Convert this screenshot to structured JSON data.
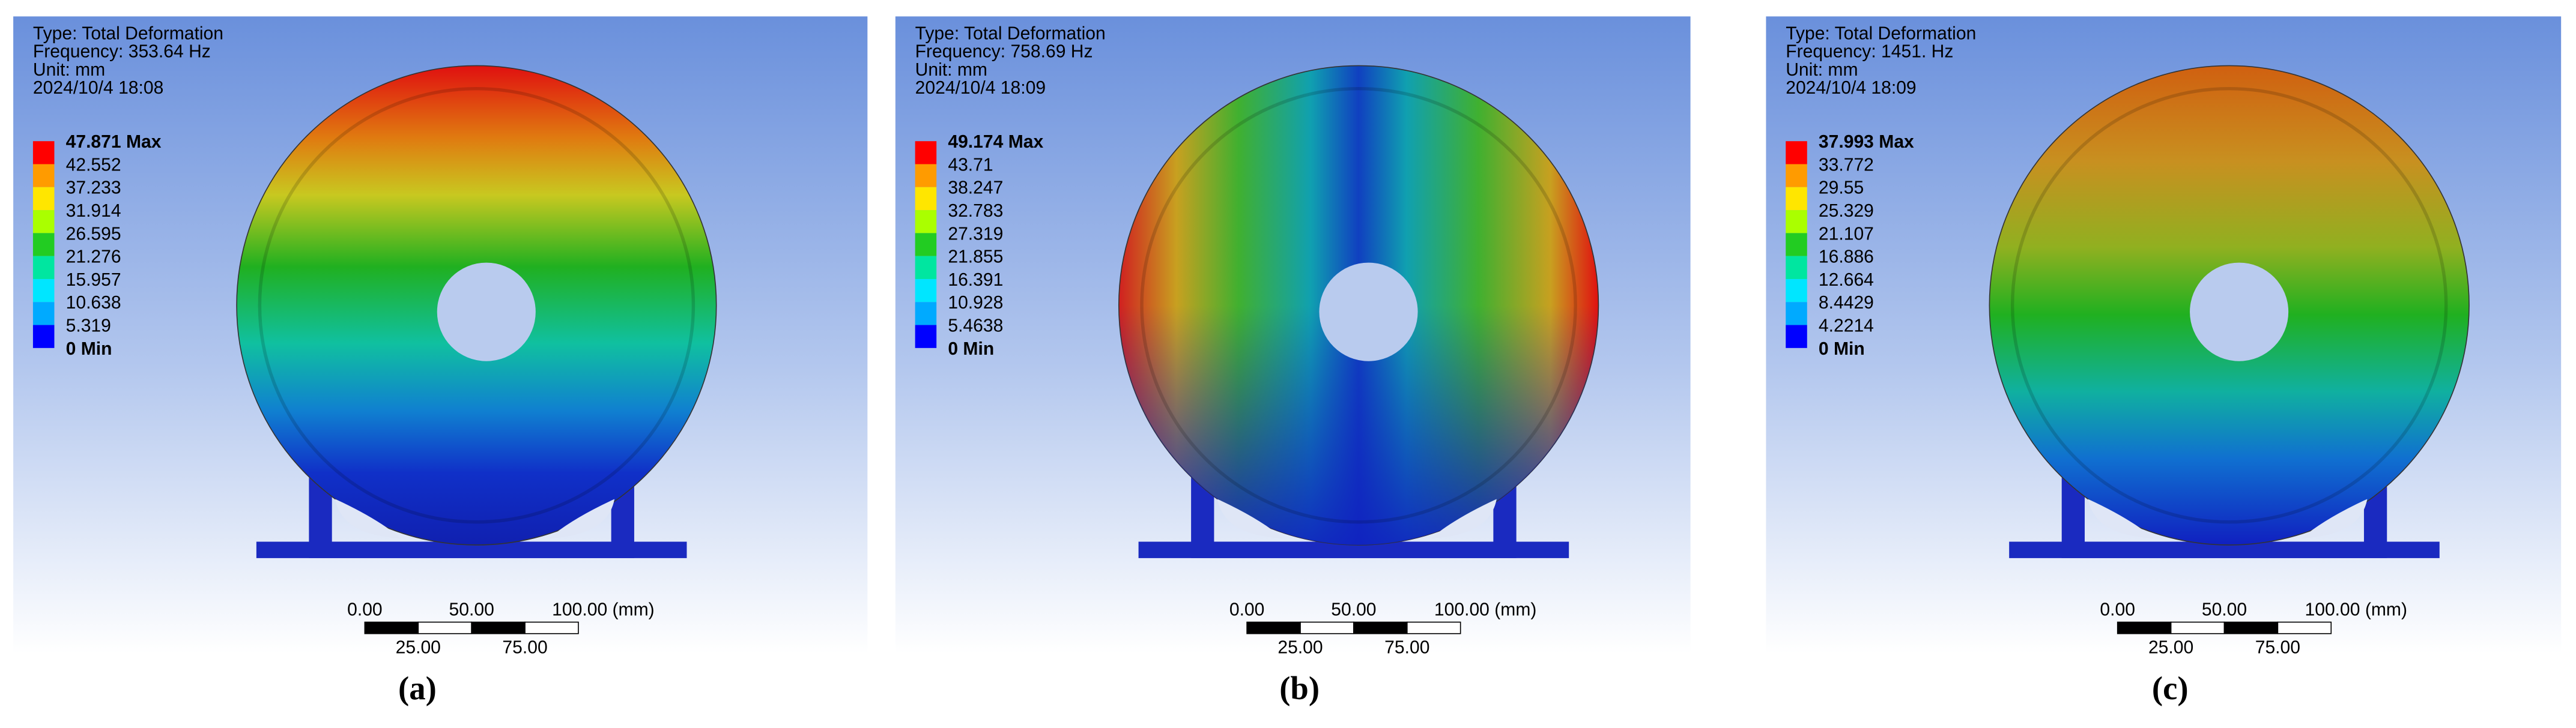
{
  "panels": [
    {
      "header": [
        "Type: Total Deformation",
        "Frequency: 353.64 Hz",
        "Unit: mm",
        "2024/10/4 18:08"
      ],
      "legend": [
        "47.871 Max",
        "42.552",
        "37.233",
        "31.914",
        "26.595",
        "21.276",
        "15.957",
        "10.638",
        "5.319",
        "0 Min"
      ],
      "scale_top": [
        "0.00",
        "50.00",
        "100.00 (mm)"
      ],
      "scale_bottom": [
        "25.00",
        "75.00"
      ],
      "caption": "(a)"
    },
    {
      "header": [
        "Type: Total Deformation",
        "Frequency: 758.69 Hz",
        "Unit: mm",
        "2024/10/4 18:09"
      ],
      "legend": [
        "49.174 Max",
        "43.71",
        "38.247",
        "32.783",
        "27.319",
        "21.855",
        "16.391",
        "10.928",
        "5.4638",
        "0 Min"
      ],
      "scale_top": [
        "0.00",
        "50.00",
        "100.00 (mm)"
      ],
      "scale_bottom": [
        "25.00",
        "75.00"
      ],
      "caption": "(b)"
    },
    {
      "header": [
        "Type: Total Deformation",
        "Frequency: 1451. Hz",
        "Unit: mm",
        "2024/10/4 18:09"
      ],
      "legend": [
        "37.993 Max",
        "33.772",
        "29.55",
        "25.329",
        "21.107",
        "16.886",
        "12.664",
        "8.4429",
        "4.2214",
        "0 Min"
      ],
      "scale_top": [
        "0.00",
        "50.00",
        "100.00 (mm)"
      ],
      "scale_bottom": [
        "25.00",
        "75.00"
      ],
      "caption": "(c)"
    }
  ]
}
